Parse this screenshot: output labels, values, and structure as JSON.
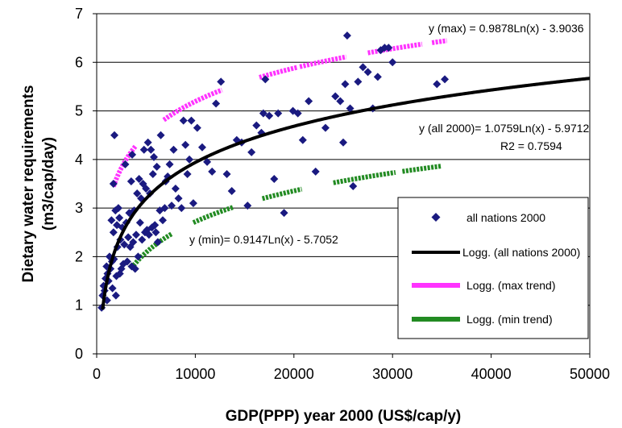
{
  "chart_data": {
    "type": "scatter",
    "xlabel": "GDP(PPP) year 2000 (US$/cap/y)",
    "ylabel_line1": "Dietary water requirements",
    "ylabel_line2": "(m3/cap/day)",
    "xlim": [
      0,
      50000
    ],
    "ylim": [
      0,
      7
    ],
    "x_ticks": [
      "0",
      "10000",
      "20000",
      "30000",
      "40000",
      "50000"
    ],
    "y_ticks": [
      "0",
      "1",
      "2",
      "3",
      "4",
      "5",
      "6",
      "7"
    ],
    "grid": "horizontal",
    "legend_position": "right",
    "colors": {
      "scatter": "#1a1a80",
      "trend_all": "#000000",
      "trend_max": "#ff33ff",
      "trend_min": "#228b22"
    },
    "annotations": {
      "max_eq": "y (max) = 0.9878Ln(x) - 3.9036",
      "all_eq": "y (all 2000)= 1.0759Ln(x) - 5.9712",
      "r2": "R2 = 0.7594",
      "min_eq": "y (min)= 0.9147Ln(x) - 5.7052"
    },
    "legend": [
      {
        "label": "all nations 2000",
        "kind": "marker"
      },
      {
        "label": "Logg. (all nations 2000)",
        "kind": "line-all"
      },
      {
        "label": "Logg. (max trend)",
        "kind": "line-max"
      },
      {
        "label": "Logg. (min trend)",
        "kind": "line-min"
      }
    ],
    "series": [
      {
        "name": "all nations 2000",
        "points": [
          [
            500,
            0.95
          ],
          [
            600,
            1.2
          ],
          [
            700,
            1.4
          ],
          [
            800,
            1.3
          ],
          [
            900,
            1.55
          ],
          [
            1000,
            1.8
          ],
          [
            1050,
            1.1
          ],
          [
            1100,
            1.65
          ],
          [
            1200,
            1.5
          ],
          [
            1300,
            2.0
          ],
          [
            1400,
            1.75
          ],
          [
            1500,
            2.75
          ],
          [
            1550,
            1.9
          ],
          [
            1600,
            1.35
          ],
          [
            1700,
            2.5
          ],
          [
            1700,
            3.5
          ],
          [
            1750,
            1.95
          ],
          [
            1800,
            4.5
          ],
          [
            1900,
            2.95
          ],
          [
            1950,
            1.2
          ],
          [
            2000,
            1.6
          ],
          [
            2050,
            2.65
          ],
          [
            2100,
            2.2
          ],
          [
            2200,
            3.0
          ],
          [
            2300,
            2.8
          ],
          [
            2350,
            1.65
          ],
          [
            2400,
            2.35
          ],
          [
            2500,
            1.75
          ],
          [
            2600,
            2.6
          ],
          [
            2700,
            1.85
          ],
          [
            2800,
            2.25
          ],
          [
            2900,
            3.9
          ],
          [
            3000,
            2.7
          ],
          [
            3100,
            1.9
          ],
          [
            3200,
            2.4
          ],
          [
            3300,
            2.9
          ],
          [
            3400,
            2.2
          ],
          [
            3500,
            3.55
          ],
          [
            3550,
            1.8
          ],
          [
            3600,
            4.1
          ],
          [
            3700,
            2.3
          ],
          [
            3800,
            2.95
          ],
          [
            3900,
            1.75
          ],
          [
            4000,
            2.45
          ],
          [
            4100,
            3.3
          ],
          [
            4200,
            2.0
          ],
          [
            4300,
            3.6
          ],
          [
            4400,
            2.7
          ],
          [
            4500,
            3.2
          ],
          [
            4600,
            2.35
          ],
          [
            4700,
            3.5
          ],
          [
            4800,
            4.2
          ],
          [
            4900,
            2.5
          ],
          [
            5000,
            3.4
          ],
          [
            5100,
            2.55
          ],
          [
            5200,
            4.35
          ],
          [
            5300,
            2.45
          ],
          [
            5400,
            3.3
          ],
          [
            5500,
            4.2
          ],
          [
            5600,
            2.6
          ],
          [
            5700,
            3.7
          ],
          [
            5800,
            4.05
          ],
          [
            5900,
            2.65
          ],
          [
            6000,
            2.5
          ],
          [
            6100,
            3.85
          ],
          [
            6200,
            2.3
          ],
          [
            6400,
            2.95
          ],
          [
            6500,
            4.5
          ],
          [
            6700,
            2.75
          ],
          [
            6900,
            3.0
          ],
          [
            7000,
            3.55
          ],
          [
            7200,
            3.65
          ],
          [
            7400,
            3.9
          ],
          [
            7600,
            3.05
          ],
          [
            7800,
            4.2
          ],
          [
            8000,
            3.4
          ],
          [
            8300,
            3.2
          ],
          [
            8600,
            3.0
          ],
          [
            8800,
            4.8
          ],
          [
            9000,
            4.3
          ],
          [
            9200,
            3.7
          ],
          [
            9400,
            4.0
          ],
          [
            9600,
            4.8
          ],
          [
            9800,
            3.1
          ],
          [
            10200,
            4.65
          ],
          [
            10700,
            4.25
          ],
          [
            11200,
            3.95
          ],
          [
            11700,
            3.75
          ],
          [
            12100,
            5.15
          ],
          [
            12600,
            5.6
          ],
          [
            13200,
            3.7
          ],
          [
            13700,
            3.35
          ],
          [
            14200,
            4.4
          ],
          [
            14700,
            4.35
          ],
          [
            15300,
            3.05
          ],
          [
            15700,
            4.15
          ],
          [
            16200,
            4.7
          ],
          [
            16700,
            4.55
          ],
          [
            16900,
            4.95
          ],
          [
            17100,
            5.65
          ],
          [
            17500,
            4.9
          ],
          [
            18000,
            3.6
          ],
          [
            18400,
            4.95
          ],
          [
            19000,
            2.9
          ],
          [
            19900,
            5.0
          ],
          [
            20400,
            4.95
          ],
          [
            20900,
            4.4
          ],
          [
            21500,
            5.2
          ],
          [
            22200,
            3.75
          ],
          [
            23200,
            4.65
          ],
          [
            24200,
            5.3
          ],
          [
            24700,
            5.2
          ],
          [
            25000,
            4.35
          ],
          [
            25200,
            5.55
          ],
          [
            25400,
            6.55
          ],
          [
            25700,
            5.05
          ],
          [
            26000,
            3.45
          ],
          [
            26500,
            5.6
          ],
          [
            27000,
            5.9
          ],
          [
            27500,
            5.8
          ],
          [
            28000,
            5.05
          ],
          [
            28500,
            5.7
          ],
          [
            28800,
            6.25
          ],
          [
            29200,
            6.3
          ],
          [
            29600,
            6.3
          ],
          [
            30000,
            6.0
          ],
          [
            34500,
            5.55
          ],
          [
            35300,
            5.65
          ]
        ]
      },
      {
        "name": "Logg. (all nations 2000)",
        "a": 1.0759,
        "b": -5.9712,
        "x_start": 600,
        "x_end": 50000
      },
      {
        "name": "Logg. (max trend)",
        "a": 0.9878,
        "b": -3.9036,
        "ranges": [
          [
            1700,
            4000
          ],
          [
            6800,
            12700
          ],
          [
            16500,
            20300
          ],
          [
            20600,
            25300
          ],
          [
            27500,
            33000
          ],
          [
            34000,
            35500
          ]
        ]
      },
      {
        "name": "Logg. (min trend)",
        "a": 0.9147,
        "b": -5.7052,
        "ranges": [
          [
            3500,
            7600
          ],
          [
            9800,
            13800
          ],
          [
            16800,
            20800
          ],
          [
            24000,
            30300
          ],
          [
            31000,
            35000
          ]
        ]
      }
    ]
  }
}
